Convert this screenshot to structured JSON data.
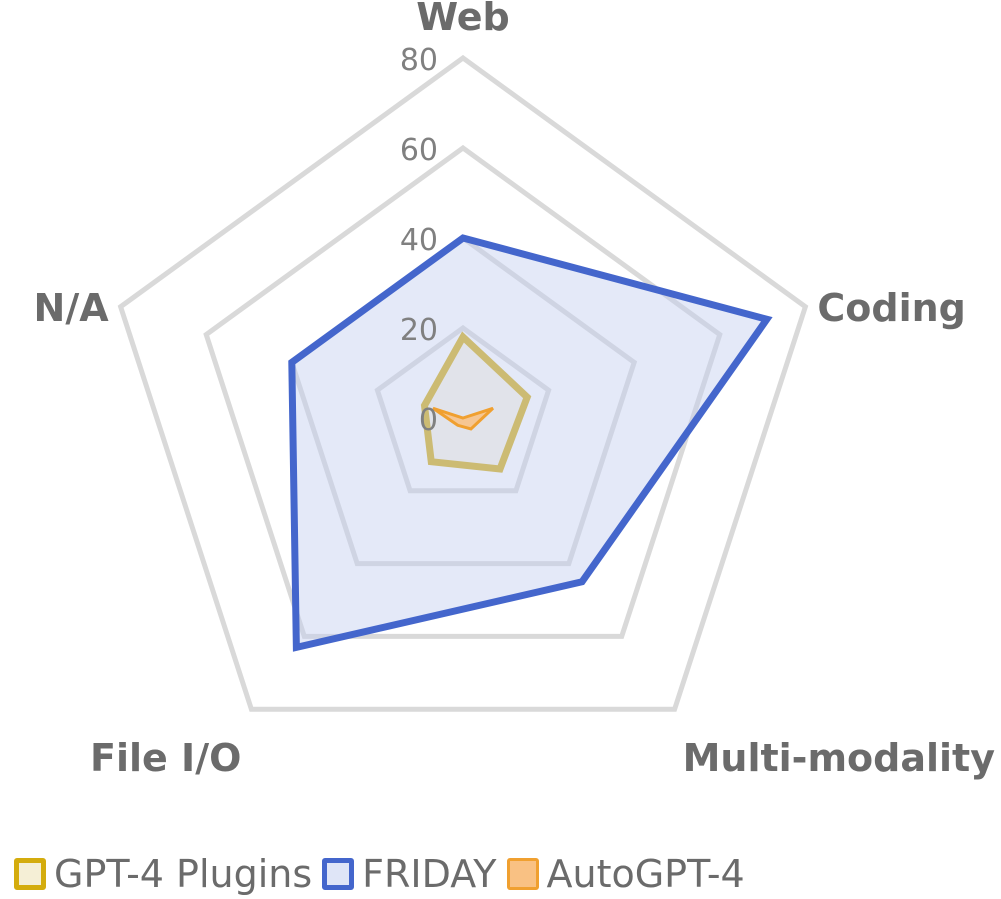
{
  "chart_data": {
    "type": "radar",
    "axes": [
      "Web",
      "Coding",
      "Multi-modality",
      "File I/O",
      "N/A"
    ],
    "ticks": [
      "0",
      "20",
      "40",
      "60",
      "80"
    ],
    "rmax": 80,
    "grid": true,
    "legend_position": "bottom",
    "series": [
      {
        "name": "GPT-4 Plugins",
        "values": [
          18,
          15,
          14,
          12,
          9
        ],
        "stroke": "#d4ac0d",
        "fill": "#f5efd6",
        "fill_opacity": 0.6
      },
      {
        "name": "FRIDAY",
        "values": [
          40,
          71,
          45,
          63,
          40
        ],
        "stroke": "#4466cc",
        "fill": "#c3cff0",
        "fill_opacity": 0.45
      },
      {
        "name": "AutoGPT-4",
        "values": [
          0,
          7,
          3,
          2,
          7
        ],
        "stroke": "#f0a030",
        "fill": "#f9c183",
        "fill_opacity": 0.85
      }
    ]
  }
}
